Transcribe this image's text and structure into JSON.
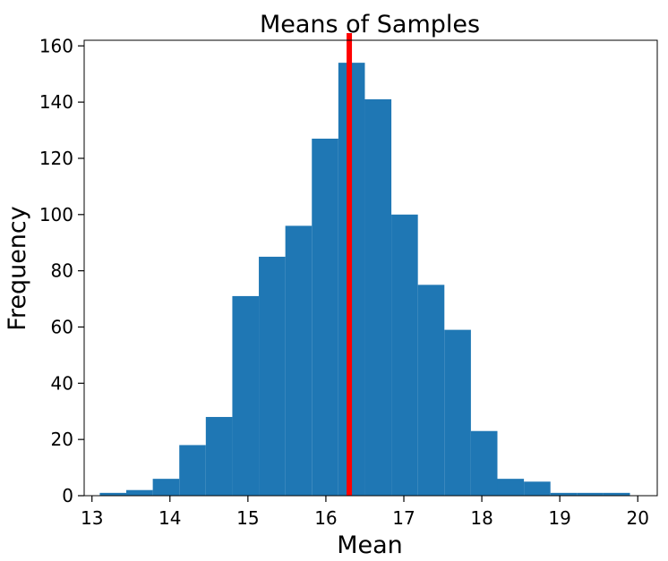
{
  "chart_data": {
    "type": "bar",
    "subtype": "histogram",
    "title": "Means of Samples",
    "xlabel": "Mean",
    "ylabel": "Frequency",
    "xlim": [
      12.9,
      20.25
    ],
    "ylim": [
      0,
      162
    ],
    "xticks": [
      "13",
      "14",
      "15",
      "16",
      "17",
      "18",
      "19",
      "20"
    ],
    "yticks": [
      "0",
      "20",
      "40",
      "60",
      "80",
      "100",
      "120",
      "140",
      "160"
    ],
    "bar_color": "#1f77b4",
    "bins": [
      {
        "x0": 13.1,
        "x1": 13.44,
        "count": 1
      },
      {
        "x0": 13.44,
        "x1": 13.78,
        "count": 2
      },
      {
        "x0": 13.78,
        "x1": 14.12,
        "count": 6
      },
      {
        "x0": 14.12,
        "x1": 14.46,
        "count": 18
      },
      {
        "x0": 14.46,
        "x1": 14.8,
        "count": 28
      },
      {
        "x0": 14.8,
        "x1": 15.14,
        "count": 71
      },
      {
        "x0": 15.14,
        "x1": 15.48,
        "count": 85
      },
      {
        "x0": 15.48,
        "x1": 15.82,
        "count": 96
      },
      {
        "x0": 15.82,
        "x1": 16.16,
        "count": 127
      },
      {
        "x0": 16.16,
        "x1": 16.5,
        "count": 154
      },
      {
        "x0": 16.5,
        "x1": 16.84,
        "count": 141
      },
      {
        "x0": 16.84,
        "x1": 17.18,
        "count": 100
      },
      {
        "x0": 17.18,
        "x1": 17.52,
        "count": 75
      },
      {
        "x0": 17.52,
        "x1": 17.86,
        "count": 59
      },
      {
        "x0": 17.86,
        "x1": 18.2,
        "count": 23
      },
      {
        "x0": 18.2,
        "x1": 18.54,
        "count": 6
      },
      {
        "x0": 18.54,
        "x1": 18.88,
        "count": 5
      },
      {
        "x0": 18.88,
        "x1": 19.22,
        "count": 1
      },
      {
        "x0": 19.22,
        "x1": 19.56,
        "count": 1
      },
      {
        "x0": 19.56,
        "x1": 19.9,
        "count": 1
      }
    ],
    "vertical_line": {
      "x": 16.3,
      "color": "#ff0000"
    }
  }
}
